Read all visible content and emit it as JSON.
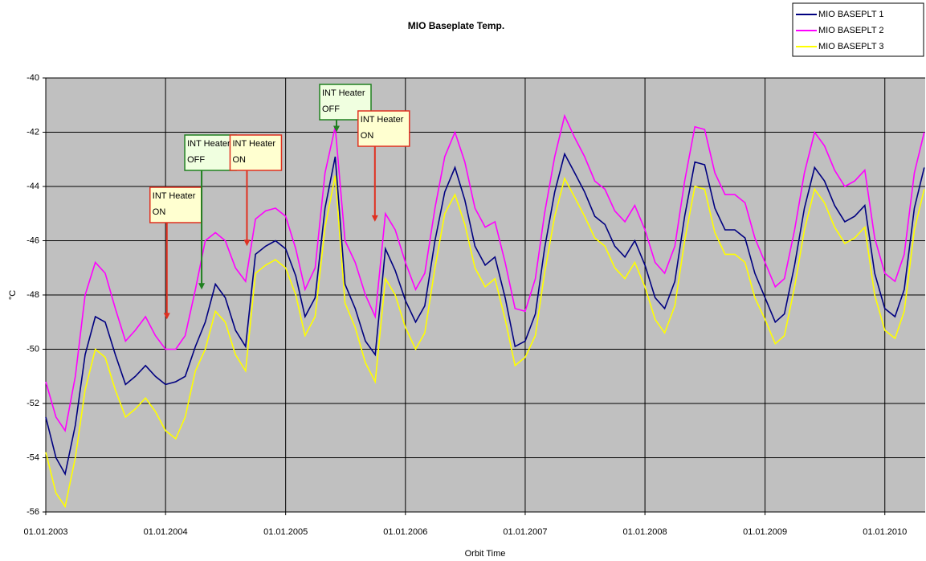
{
  "chart_data": {
    "type": "line",
    "title": "MIO Baseplate Temp.",
    "x_label": "Orbit Time",
    "y_label": "°C",
    "x": [
      "2003-01-01",
      "2003-02-01",
      "2003-03-01",
      "2003-04-01",
      "2003-05-01",
      "2003-06-01",
      "2003-07-01",
      "2003-08-01",
      "2003-09-01",
      "2003-10-01",
      "2003-11-01",
      "2003-12-01",
      "2004-01-01",
      "2004-02-01",
      "2004-03-01",
      "2004-04-01",
      "2004-05-01",
      "2004-06-01",
      "2004-07-01",
      "2004-08-01",
      "2004-09-01",
      "2004-10-01",
      "2004-11-01",
      "2004-12-01",
      "2005-01-01",
      "2005-02-01",
      "2005-03-01",
      "2005-04-01",
      "2005-05-01",
      "2005-06-01",
      "2005-07-01",
      "2005-08-01",
      "2005-09-01",
      "2005-10-01",
      "2005-11-01",
      "2005-12-01",
      "2006-01-01",
      "2006-02-01",
      "2006-03-01",
      "2006-04-01",
      "2006-05-01",
      "2006-06-01",
      "2006-07-01",
      "2006-08-01",
      "2006-09-01",
      "2006-10-01",
      "2006-11-01",
      "2006-12-01",
      "2007-01-01",
      "2007-02-01",
      "2007-03-01",
      "2007-04-01",
      "2007-05-01",
      "2007-06-01",
      "2007-07-01",
      "2007-08-01",
      "2007-09-01",
      "2007-10-01",
      "2007-11-01",
      "2007-12-01",
      "2008-01-01",
      "2008-02-01",
      "2008-03-01",
      "2008-04-01",
      "2008-05-01",
      "2008-06-01",
      "2008-07-01",
      "2008-08-01",
      "2008-09-01",
      "2008-10-01",
      "2008-11-01",
      "2008-12-01",
      "2009-01-01",
      "2009-02-01",
      "2009-03-01",
      "2009-04-01",
      "2009-05-01",
      "2009-06-01",
      "2009-07-01",
      "2009-08-01",
      "2009-09-01",
      "2009-10-01",
      "2009-11-01",
      "2009-12-01",
      "2010-01-01",
      "2010-02-01",
      "2010-03-01",
      "2010-04-01",
      "2010-05-01"
    ],
    "series": [
      {
        "name": "MIO BASEPLT 1",
        "color": "#000080",
        "values": [
          -52.5,
          -54.0,
          -54.6,
          -52.8,
          -50.2,
          -48.8,
          -49.0,
          -50.2,
          -51.3,
          -51.0,
          -50.6,
          -51.0,
          -51.3,
          -51.2,
          -51.0,
          -49.9,
          -49.0,
          -47.6,
          -48.1,
          -49.3,
          -49.9,
          -46.5,
          -46.2,
          -46.0,
          -46.3,
          -47.3,
          -48.8,
          -48.1,
          -44.8,
          -42.9,
          -47.6,
          -48.5,
          -49.7,
          -50.2,
          -46.3,
          -47.1,
          -48.2,
          -49.0,
          -48.4,
          -46.0,
          -44.2,
          -43.3,
          -44.5,
          -46.2,
          -46.9,
          -46.6,
          -48.1,
          -49.9,
          -49.7,
          -48.7,
          -46.3,
          -44.2,
          -42.8,
          -43.5,
          -44.2,
          -45.1,
          -45.4,
          -46.2,
          -46.6,
          -46.0,
          -46.9,
          -48.1,
          -48.5,
          -47.5,
          -45.1,
          -43.1,
          -43.2,
          -44.8,
          -45.6,
          -45.6,
          -45.9,
          -47.2,
          -48.1,
          -49.0,
          -48.7,
          -46.9,
          -44.8,
          -43.3,
          -43.8,
          -44.7,
          -45.3,
          -45.1,
          -44.7,
          -47.2,
          -48.5,
          -48.8,
          -47.8,
          -44.8,
          -43.3
        ]
      },
      {
        "name": "MIO BASEPLT 2",
        "color": "#ff00ff",
        "values": [
          -51.2,
          -52.5,
          -53.0,
          -51.0,
          -48.0,
          -46.8,
          -47.2,
          -48.5,
          -49.7,
          -49.3,
          -48.8,
          -49.5,
          -50.0,
          -50.0,
          -49.5,
          -47.8,
          -46.0,
          -45.7,
          -46.0,
          -47.0,
          -47.5,
          -45.2,
          -44.9,
          -44.8,
          -45.1,
          -46.3,
          -47.8,
          -47.0,
          -43.5,
          -41.8,
          -46.0,
          -46.8,
          -48.0,
          -48.8,
          -45.0,
          -45.6,
          -46.8,
          -47.8,
          -47.2,
          -44.8,
          -42.9,
          -42.0,
          -43.1,
          -44.8,
          -45.5,
          -45.3,
          -46.8,
          -48.5,
          -48.6,
          -47.4,
          -45.0,
          -42.9,
          -41.4,
          -42.2,
          -42.9,
          -43.8,
          -44.1,
          -44.9,
          -45.3,
          -44.7,
          -45.6,
          -46.8,
          -47.2,
          -46.2,
          -43.8,
          -41.8,
          -41.9,
          -43.5,
          -44.3,
          -44.3,
          -44.6,
          -45.9,
          -46.8,
          -47.7,
          -47.4,
          -45.6,
          -43.5,
          -42.0,
          -42.5,
          -43.4,
          -44.0,
          -43.8,
          -43.4,
          -45.9,
          -47.2,
          -47.5,
          -46.5,
          -43.5,
          -42.0
        ]
      },
      {
        "name": "MIO BASEPLT 3",
        "color": "#ffff00",
        "values": [
          -53.8,
          -55.3,
          -55.8,
          -54.0,
          -51.5,
          -50.0,
          -50.3,
          -51.5,
          -52.5,
          -52.2,
          -51.8,
          -52.3,
          -53.0,
          -53.3,
          -52.5,
          -50.8,
          -50.0,
          -48.6,
          -49.0,
          -50.2,
          -50.8,
          -47.2,
          -46.9,
          -46.7,
          -47.0,
          -48.0,
          -49.5,
          -48.8,
          -45.5,
          -43.6,
          -48.3,
          -49.2,
          -50.5,
          -51.2,
          -47.4,
          -48.0,
          -49.2,
          -50.0,
          -49.4,
          -47.0,
          -45.0,
          -44.3,
          -45.4,
          -47.0,
          -47.7,
          -47.4,
          -48.9,
          -50.6,
          -50.3,
          -49.5,
          -47.2,
          -45.1,
          -43.7,
          -44.4,
          -45.1,
          -45.9,
          -46.2,
          -47.0,
          -47.4,
          -46.8,
          -47.7,
          -48.9,
          -49.4,
          -48.4,
          -46.0,
          -44.0,
          -44.1,
          -45.7,
          -46.5,
          -46.5,
          -46.8,
          -48.1,
          -48.9,
          -49.8,
          -49.5,
          -47.7,
          -45.6,
          -44.1,
          -44.6,
          -45.5,
          -46.1,
          -45.9,
          -45.5,
          -48.0,
          -49.3,
          -49.6,
          -48.6,
          -45.6,
          -44.1
        ]
      }
    ],
    "xlim": [
      "2003-01-01",
      "2010-05-04"
    ],
    "xticks": [
      {
        "value": "2003-01-01",
        "label": "01.01.2003"
      },
      {
        "value": "2004-01-01",
        "label": "01.01.2004"
      },
      {
        "value": "2005-01-01",
        "label": "01.01.2005"
      },
      {
        "value": "2006-01-01",
        "label": "01.01.2006"
      },
      {
        "value": "2007-01-01",
        "label": "01.01.2007"
      },
      {
        "value": "2008-01-01",
        "label": "01.01.2008"
      },
      {
        "value": "2009-01-01",
        "label": "01.01.2009"
      },
      {
        "value": "2010-01-01",
        "label": "01.01.2010"
      }
    ],
    "ylim": [
      -56,
      -40
    ],
    "yticks": [
      -56,
      -54,
      -52,
      -50,
      -48,
      -46,
      -44,
      -42,
      -40
    ],
    "grid": true,
    "legend": "top-right",
    "annotations": [
      {
        "lines": [
          "INT Heater",
          "ON"
        ],
        "x": "2004-01-05",
        "y": -48.9,
        "color": "#e03020"
      },
      {
        "lines": [
          "INT Heater",
          "OFF"
        ],
        "x": "2004-04-20",
        "y": -47.8,
        "color": "#208020"
      },
      {
        "lines": [
          "INT Heater",
          "ON"
        ],
        "x": "2004-09-05",
        "y": -46.2,
        "color": "#e03020"
      },
      {
        "lines": [
          "INT Heater",
          "OFF"
        ],
        "x": "2005-06-05",
        "y": -42.0,
        "color": "#208020"
      },
      {
        "lines": [
          "INT Heater",
          "ON"
        ],
        "x": "2005-09-30",
        "y": -45.3,
        "color": "#e03020"
      }
    ]
  }
}
